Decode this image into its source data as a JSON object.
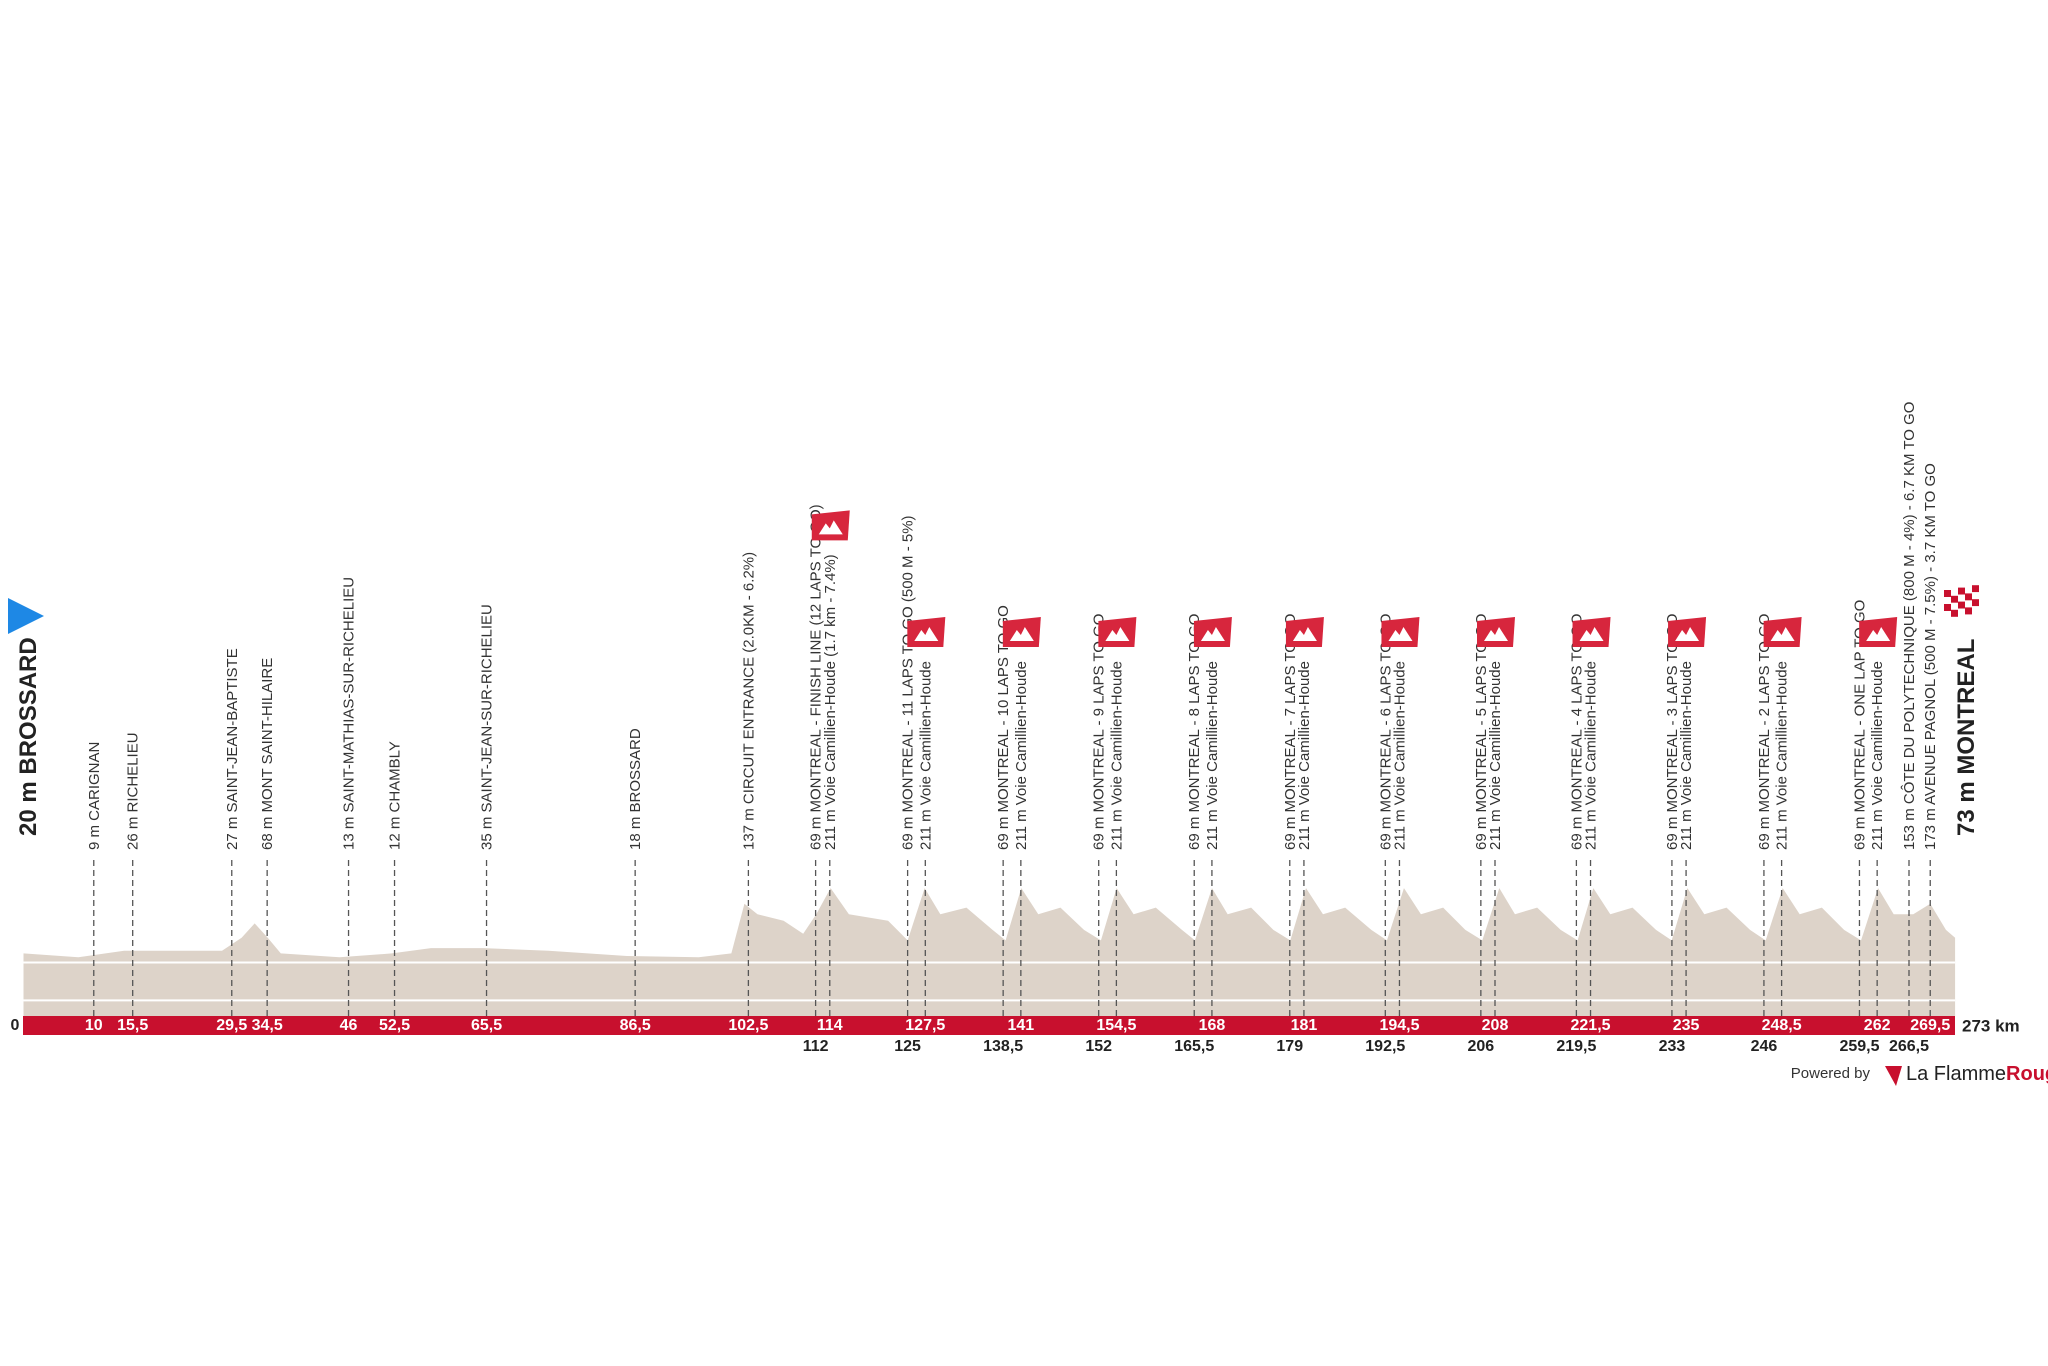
{
  "km_range": [
    0,
    273
  ],
  "distance_label": "273 km",
  "start": {
    "label": "20 m BROSSARD"
  },
  "finish": {
    "label": "73 m MONTREAL"
  },
  "km_marks": [
    0,
    10,
    {
      "value": 15.5,
      "label": "15,5"
    },
    {
      "value": 29.5,
      "label": "29,5"
    },
    {
      "value": 34.5,
      "label": "34,5"
    },
    46,
    {
      "value": 52.5,
      "label": "52,5"
    },
    {
      "value": 65.5,
      "label": "65,5"
    },
    {
      "value": 86.5,
      "label": "86,5"
    },
    {
      "value": 102.5,
      "label": "102,5"
    },
    114,
    {
      "value": 127.5,
      "label": "127,5"
    },
    141,
    {
      "value": 154.5,
      "label": "154,5"
    },
    168,
    181,
    {
      "value": 194.5,
      "label": "194,5"
    },
    208,
    {
      "value": 221.5,
      "label": "221,5"
    },
    235,
    {
      "value": 248.5,
      "label": "248,5"
    },
    262,
    {
      "value": 269.5,
      "label": "269,5"
    }
  ],
  "km_marks_below": [
    112,
    125,
    {
      "value": 138.5,
      "label": "138,5"
    },
    152,
    {
      "value": 165.5,
      "label": "165,5"
    },
    179,
    {
      "value": 192.5,
      "label": "192,5"
    },
    206,
    {
      "value": 219.5,
      "label": "219,5"
    },
    233,
    246,
    {
      "value": 259.5,
      "label": "259,5"
    },
    {
      "value": 266.5,
      "label": "266,5"
    }
  ],
  "markers": [
    {
      "km": 10,
      "label": "9 m CARIGNAN"
    },
    {
      "km": 15.5,
      "label": "26 m RICHELIEU"
    },
    {
      "km": 29.5,
      "label": "27 m SAINT-JEAN-BAPTISTE"
    },
    {
      "km": 34.5,
      "label": "68 m MONT SAINT-HILAIRE"
    },
    {
      "km": 46,
      "label": "13 m SAINT-MATHIAS-SUR-RICHELIEU"
    },
    {
      "km": 52.5,
      "label": "12 m CHAMBLY"
    },
    {
      "km": 65.5,
      "label": "35 m SAINT-JEAN-SUR-RICHELIEU"
    },
    {
      "km": 86.5,
      "label": "18 m BROSSARD"
    },
    {
      "km": 102.5,
      "label": "137 m CIRCUIT ENTRANCE (2.0KM - 6.2%)"
    },
    {
      "km": 112,
      "label": "69 m MONTREAL - FINISH LINE (12 LAPS TO GO)"
    },
    {
      "km": 114,
      "label": "211 m Voie Camillien-Houde (1.7 km - 7.4%)",
      "climb": true
    },
    {
      "km": 125,
      "label": "69 m MONTREAL - 11 LAPS TO GO (500 M - 5%)"
    },
    {
      "km": 127.5,
      "label": "211 m Voie Camillien-Houde",
      "climb": true
    },
    {
      "km": 138.5,
      "label": "69 m MONTREAL - 10 LAPS TO GO"
    },
    {
      "km": 141,
      "label": "211 m Voie Camillien-Houde",
      "climb": true
    },
    {
      "km": 152,
      "label": "69 m MONTREAL - 9 LAPS TO GO"
    },
    {
      "km": 154.5,
      "label": "211 m Voie Camillien-Houde",
      "climb": true
    },
    {
      "km": 165.5,
      "label": "69 m MONTREAL - 8 LAPS TO GO"
    },
    {
      "km": 168,
      "label": "211 m Voie Camillien-Houde",
      "climb": true
    },
    {
      "km": 179,
      "label": "69 m MONTREAL - 7 LAPS TO GO"
    },
    {
      "km": 181,
      "label": "211 m Voie Camillien-Houde",
      "climb": true
    },
    {
      "km": 192.5,
      "label": "69 m MONTREAL - 6 LAPS TO GO"
    },
    {
      "km": 194.5,
      "label": "211 m Voie Camillien-Houde",
      "climb": true
    },
    {
      "km": 206,
      "label": "69 m MONTREAL - 5 LAPS TO GO"
    },
    {
      "km": 208,
      "label": "211 m Voie Camillien-Houde",
      "climb": true
    },
    {
      "km": 219.5,
      "label": "69 m MONTREAL - 4 LAPS TO GO"
    },
    {
      "km": 221.5,
      "label": "211 m Voie Camillien-Houde",
      "climb": true
    },
    {
      "km": 233,
      "label": "69 m MONTREAL - 3 LAPS TO GO"
    },
    {
      "km": 235,
      "label": "211 m Voie Camillien-Houde",
      "climb": true
    },
    {
      "km": 246,
      "label": "69 m MONTREAL - 2 LAPS TO GO"
    },
    {
      "km": 248.5,
      "label": "211 m Voie Camillien-Houde",
      "climb": true
    },
    {
      "km": 259.5,
      "label": "69 m MONTREAL - ONE LAP TO GO"
    },
    {
      "km": 262,
      "label": "211 m Voie Camillien-Houde",
      "climb": true
    },
    {
      "km": 266.5,
      "label": "153 m CÔTE DU POLYTECHNIQUE (800 M - 4%) - 6.7 KM TO GO"
    },
    {
      "km": 269.5,
      "label": "173 m AVENUE PAGNOL (500 M - 7.5%) - 3.7 KM TO GO"
    }
  ],
  "footer": {
    "powered": "Powered by",
    "brand": "La Flamme",
    "brand_accent": "Rouge"
  }
}
